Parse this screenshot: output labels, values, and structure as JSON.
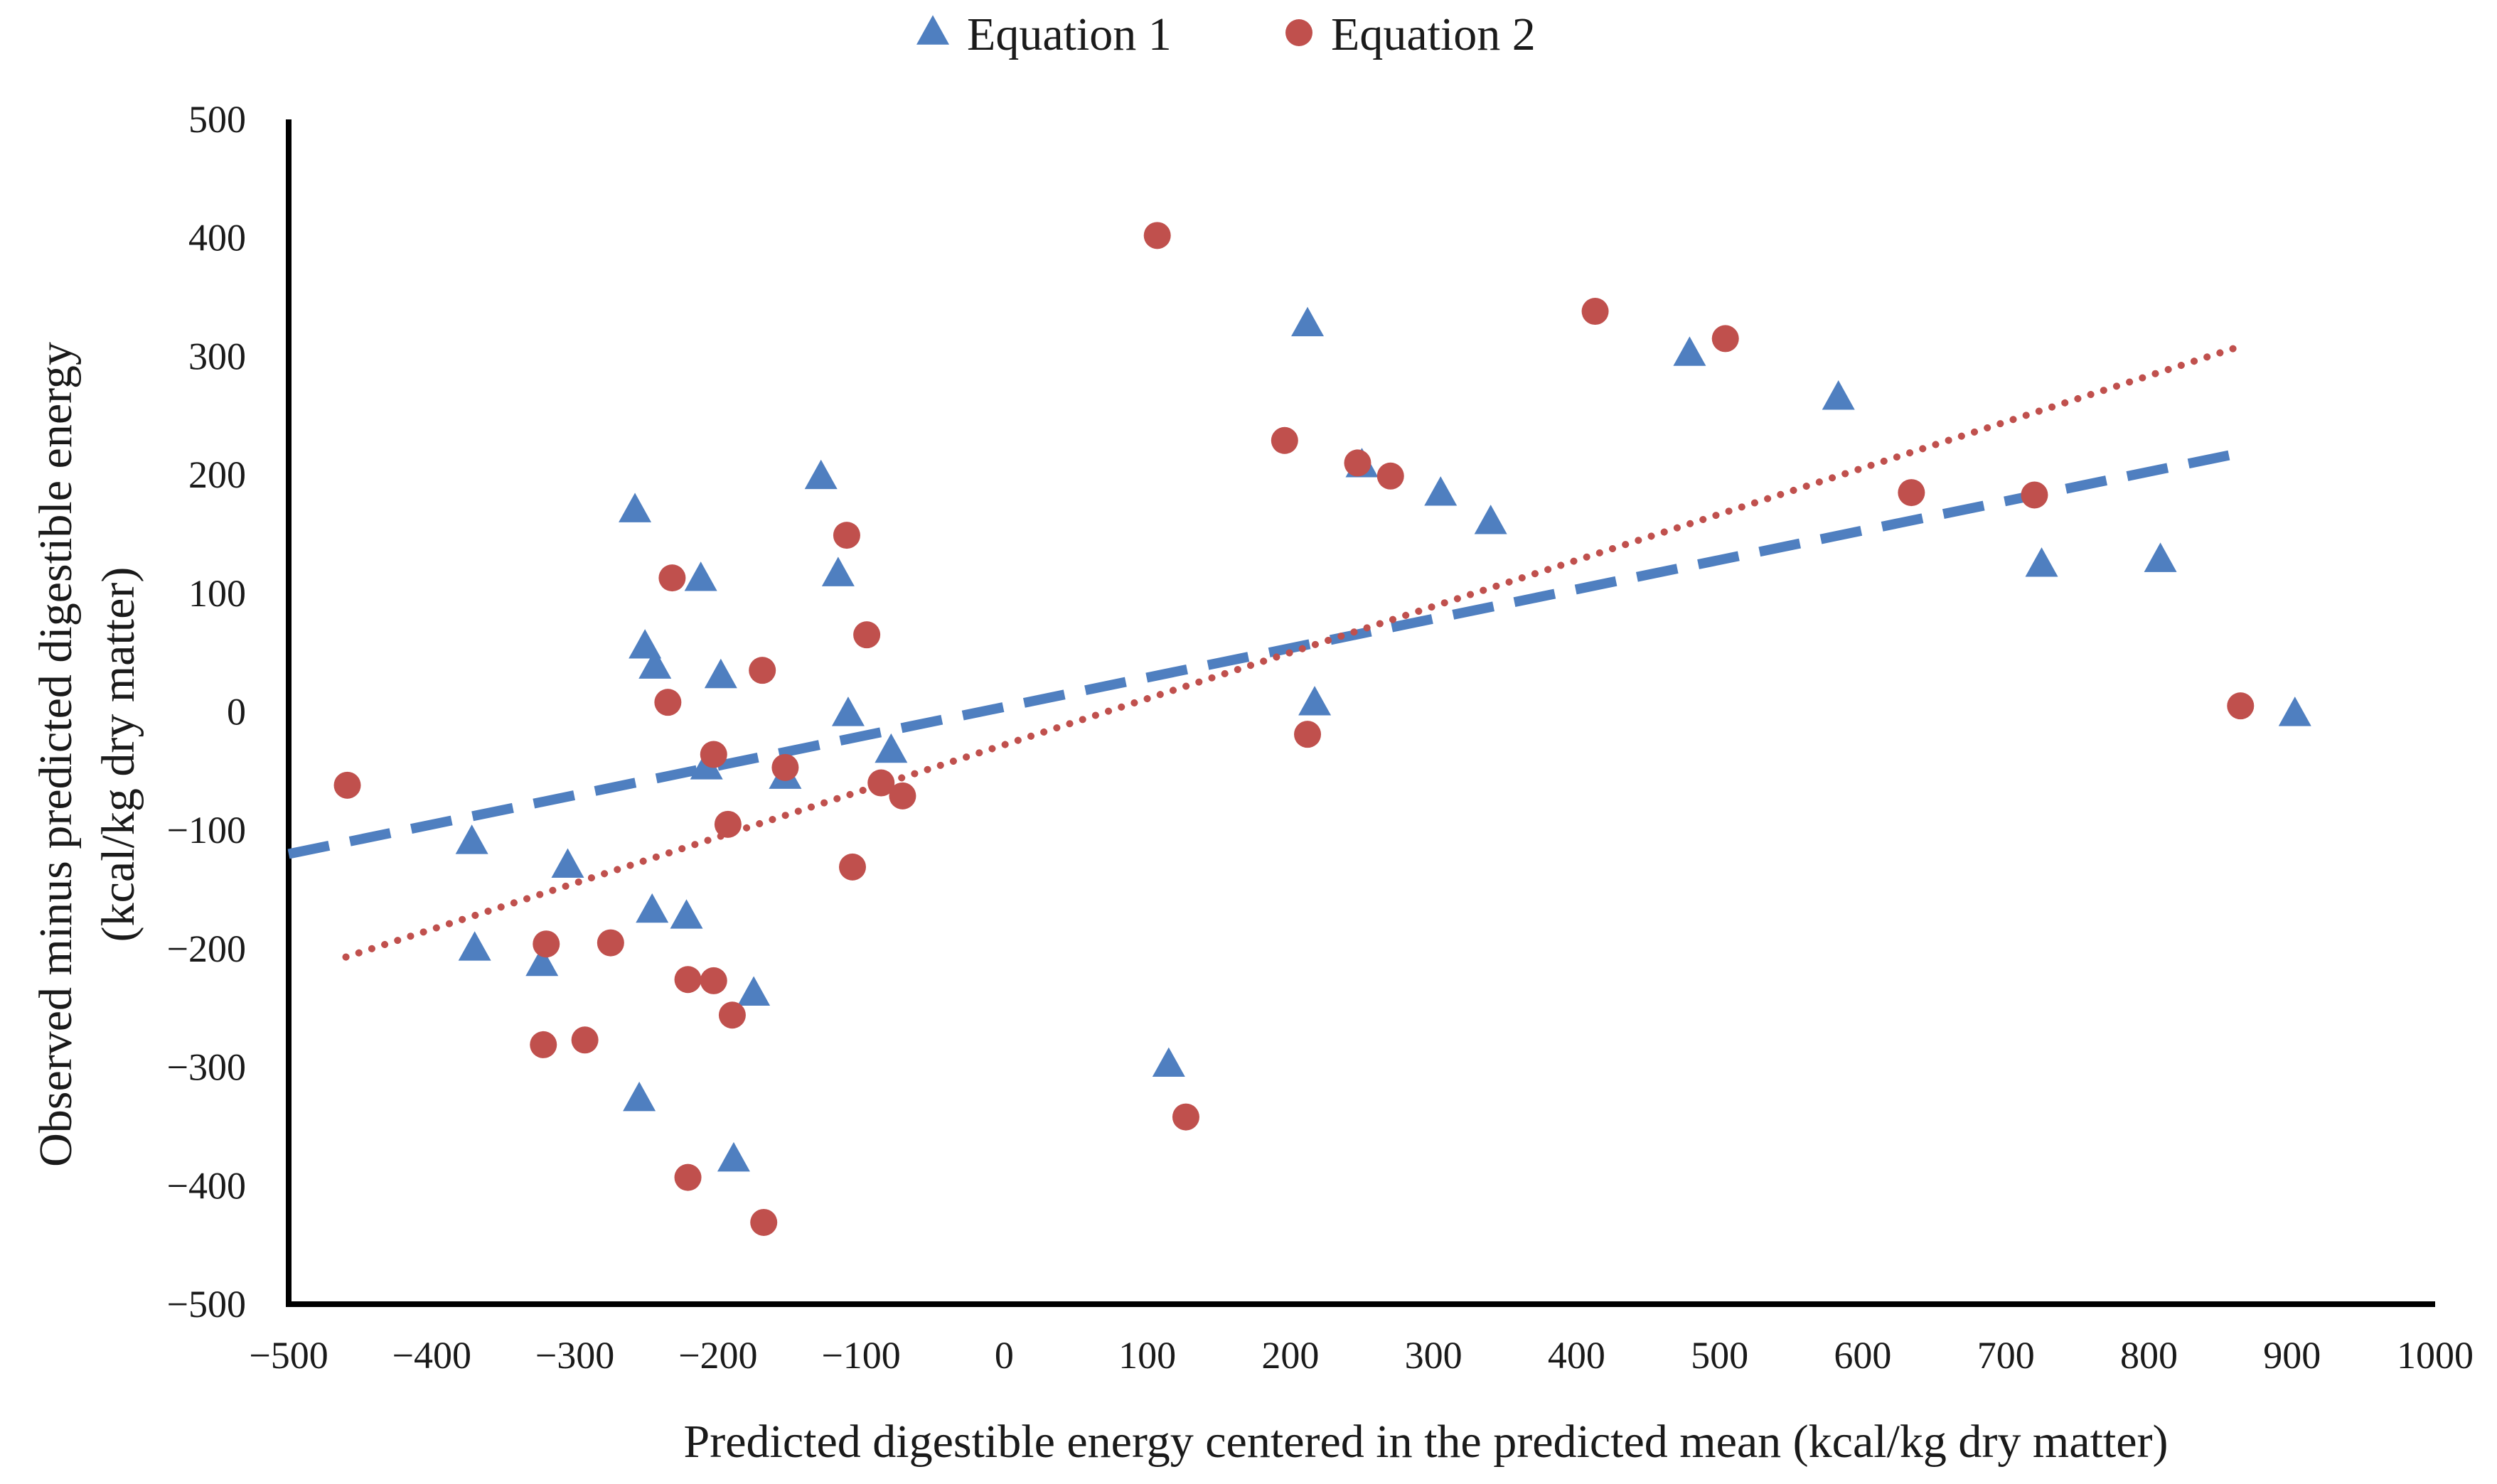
{
  "chart_data": {
    "type": "scatter",
    "title": "",
    "xlabel": "Predicted digestible energy centered in the predicted mean (kcal/kg dry matter)",
    "ylabel_line1": "Observed minus predicted digestible energy",
    "ylabel_line2": "(kcal/kg dry matter)",
    "xlim": [
      -500,
      1000
    ],
    "ylim": [
      -500,
      500
    ],
    "x_ticks": [
      -500,
      -400,
      -300,
      -200,
      -100,
      0,
      100,
      200,
      300,
      400,
      500,
      600,
      700,
      800,
      900,
      1000
    ],
    "y_ticks": [
      -500,
      -400,
      -300,
      -200,
      -100,
      0,
      100,
      200,
      300,
      400,
      500
    ],
    "x_tick_labels": [
      "−500",
      "−400",
      "−300",
      "−200",
      "−100",
      "0",
      "100",
      "200",
      "300",
      "400",
      "500",
      "600",
      "700",
      "800",
      "900",
      "1000"
    ],
    "y_tick_labels": [
      "−500",
      "−400",
      "−300",
      "−200",
      "−100",
      "0",
      "100",
      "200",
      "300",
      "400",
      "500"
    ],
    "grid": false,
    "legend_position": "top-center",
    "series": [
      {
        "name": "Equation 1",
        "marker": "triangle",
        "color": "#4f7fc0",
        "points": [
          [
            -372,
            -110
          ],
          [
            -370,
            -200
          ],
          [
            -305,
            -130
          ],
          [
            -323,
            -213
          ],
          [
            -258,
            170
          ],
          [
            -251,
            55
          ],
          [
            -244,
            38
          ],
          [
            -246,
            -168
          ],
          [
            -222,
            -173
          ],
          [
            -255,
            -327
          ],
          [
            -212,
            112
          ],
          [
            -198,
            30
          ],
          [
            -208,
            -47
          ],
          [
            -175,
            -238
          ],
          [
            -189,
            -378
          ],
          [
            -153,
            -55
          ],
          [
            -128,
            198
          ],
          [
            -116,
            116
          ],
          [
            -109,
            -2
          ],
          [
            -79,
            -33
          ],
          [
            115,
            -298
          ],
          [
            212,
            327
          ],
          [
            217,
            7
          ],
          [
            250,
            208
          ],
          [
            305,
            184
          ],
          [
            340,
            160
          ],
          [
            479,
            302
          ],
          [
            583,
            265
          ],
          [
            725,
            124
          ],
          [
            808,
            128
          ],
          [
            902,
            -2
          ]
        ],
        "trendline": {
          "style": "dashed",
          "x": [
            -500,
            870
          ],
          "y": [
            -120,
            220
          ]
        }
      },
      {
        "name": "Equation 2",
        "marker": "circle",
        "color": "#c0504d",
        "points": [
          [
            -459,
            -62
          ],
          [
            -320,
            -196
          ],
          [
            -322,
            -281
          ],
          [
            -293,
            -277
          ],
          [
            -275,
            -195
          ],
          [
            -232,
            113
          ],
          [
            -235,
            8
          ],
          [
            -221,
            -226
          ],
          [
            -221,
            -393
          ],
          [
            -203,
            -36
          ],
          [
            -203,
            -227
          ],
          [
            -193,
            -95
          ],
          [
            -190,
            -256
          ],
          [
            -169,
            35
          ],
          [
            -168,
            -431
          ],
          [
            -153,
            -47
          ],
          [
            -110,
            149
          ],
          [
            -106,
            -131
          ],
          [
            -96,
            65
          ],
          [
            -86,
            -60
          ],
          [
            -71,
            -71
          ],
          [
            107,
            402
          ],
          [
            127,
            -342
          ],
          [
            196,
            229
          ],
          [
            212,
            -19
          ],
          [
            247,
            210
          ],
          [
            270,
            199
          ],
          [
            413,
            338
          ],
          [
            504,
            315
          ],
          [
            634,
            185
          ],
          [
            720,
            183
          ],
          [
            864,
            5
          ]
        ],
        "trendline": {
          "style": "dotted",
          "x": [
            -460,
            860
          ],
          "y": [
            -207,
            307
          ]
        }
      }
    ]
  }
}
